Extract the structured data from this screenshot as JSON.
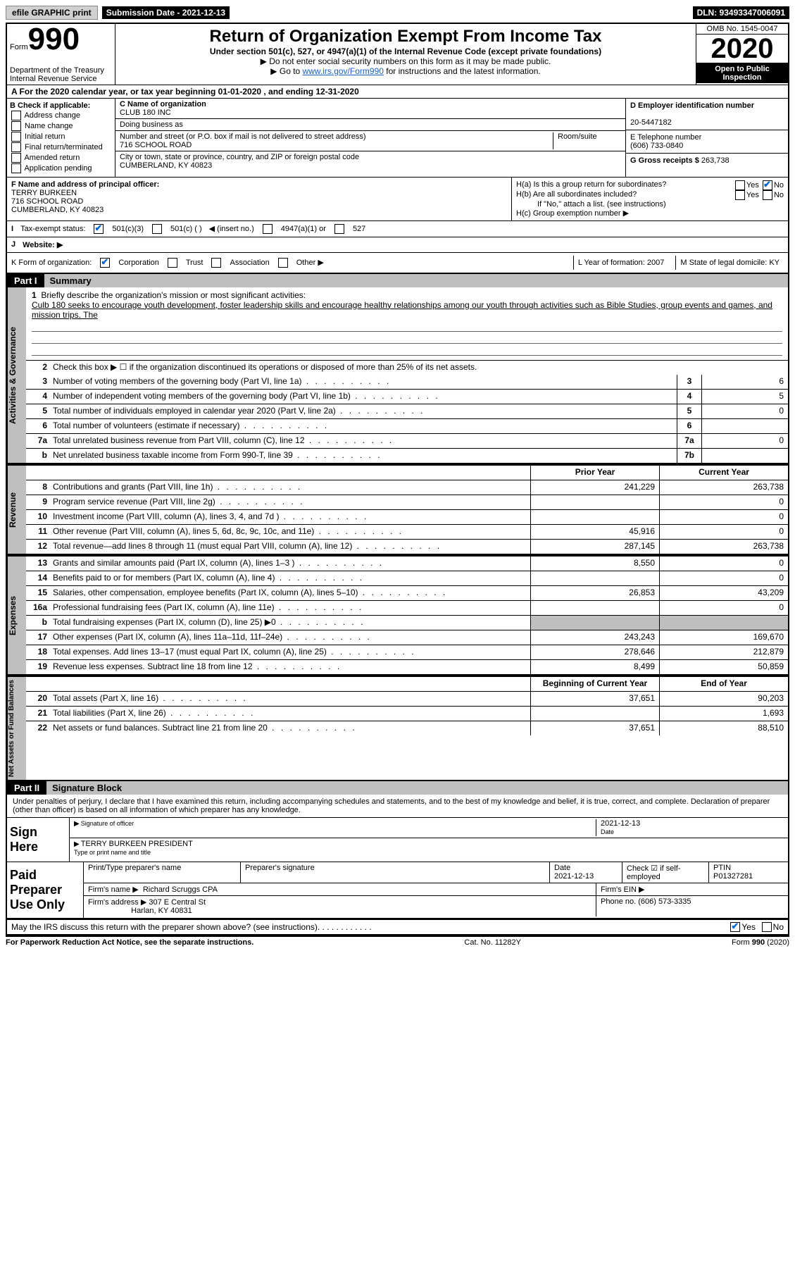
{
  "topbar": {
    "efile": "efile GRAPHIC print",
    "submission_label": "Submission Date - 2021-12-13",
    "dln": "DLN: 93493347006091"
  },
  "header": {
    "form_word": "Form",
    "form_num": "990",
    "dept": "Department of the Treasury\nInternal Revenue Service",
    "title": "Return of Organization Exempt From Income Tax",
    "sub": "Under section 501(c), 527, or 4947(a)(1) of the Internal Revenue Code (except private foundations)",
    "note1": "▶ Do not enter social security numbers on this form as it may be made public.",
    "note2_pre": "▶ Go to ",
    "note2_link": "www.irs.gov/Form990",
    "note2_post": " for instructions and the latest information.",
    "omb": "OMB No. 1545-0047",
    "year": "2020",
    "inspect": "Open to Public Inspection"
  },
  "periodA": "A For the 2020 calendar year, or tax year beginning 01-01-2020   , and ending 12-31-2020",
  "boxB": {
    "title": "B Check if applicable:",
    "items": [
      "Address change",
      "Name change",
      "Initial return",
      "Final return/terminated",
      "Amended return",
      "Application pending"
    ]
  },
  "boxC": {
    "name_label": "C Name of organization",
    "name": "CLUB 180 INC",
    "dba": "Doing business as",
    "street_label": "Number and street (or P.O. box if mail is not delivered to street address)",
    "street": "716 SCHOOL ROAD",
    "room_label": "Room/suite",
    "city_label": "City or town, state or province, country, and ZIP or foreign postal code",
    "city": "CUMBERLAND, KY  40823"
  },
  "boxD": {
    "ein_label": "D Employer identification number",
    "ein": "20-5447182",
    "tel_label": "E Telephone number",
    "tel": "(606) 733-0840",
    "gross_label": "G Gross receipts $",
    "gross": "263,738"
  },
  "boxF": {
    "label": "F Name and address of principal officer:",
    "name": "TERRY BURKEEN",
    "street": "716 SCHOOL ROAD",
    "city": "CUMBERLAND, KY  40823"
  },
  "boxH": {
    "a": "H(a)  Is this a group return for subordinates?",
    "b": "H(b)  Are all subordinates included?",
    "note": "If \"No,\" attach a list. (see instructions)",
    "c": "H(c)  Group exemption number ▶",
    "yes": "Yes",
    "no": "No"
  },
  "statusI": {
    "label": "Tax-exempt status:",
    "opt1": "501(c)(3)",
    "opt2": "501(c) ( )",
    "opt2b": "◀ (insert no.)",
    "opt3": "4947(a)(1) or",
    "opt4": "527"
  },
  "websiteJ": "Website: ▶",
  "orgK": {
    "label": "K Form of organization:",
    "corp": "Corporation",
    "trust": "Trust",
    "assoc": "Association",
    "other": "Other ▶"
  },
  "LM": {
    "l": "L Year of formation: 2007",
    "m": "M State of legal domicile: KY"
  },
  "part1": {
    "label": "Part I",
    "title": "Summary"
  },
  "mission": {
    "q": "Briefly describe the organization's mission or most significant activities:",
    "text": "Culb 180 seeks to encourage youth development, foster leadership skills and encourage healthy relationships among our youth through activities such as Bible Studies, group events and games, and mission trips. The"
  },
  "box2": "Check this box ▶ ☐  if the organization discontinued its operations or disposed of more than 25% of its net assets.",
  "governance": {
    "side": "Activities & Governance",
    "rows": [
      {
        "n": "3",
        "t": "Number of voting members of the governing body (Part VI, line 1a)",
        "box": "3",
        "v": "6"
      },
      {
        "n": "4",
        "t": "Number of independent voting members of the governing body (Part VI, line 1b)",
        "box": "4",
        "v": "5"
      },
      {
        "n": "5",
        "t": "Total number of individuals employed in calendar year 2020 (Part V, line 2a)",
        "box": "5",
        "v": "0"
      },
      {
        "n": "6",
        "t": "Total number of volunteers (estimate if necessary)",
        "box": "6",
        "v": ""
      },
      {
        "n": "7a",
        "t": "Total unrelated business revenue from Part VIII, column (C), line 12",
        "box": "7a",
        "v": "0"
      },
      {
        "n": "b",
        "t": "Net unrelated business taxable income from Form 990-T, line 39",
        "box": "7b",
        "v": ""
      }
    ]
  },
  "columns": {
    "prior": "Prior Year",
    "current": "Current Year"
  },
  "revenue": {
    "side": "Revenue",
    "rows": [
      {
        "n": "8",
        "t": "Contributions and grants (Part VIII, line 1h)",
        "py": "241,229",
        "cy": "263,738"
      },
      {
        "n": "9",
        "t": "Program service revenue (Part VIII, line 2g)",
        "py": "",
        "cy": "0"
      },
      {
        "n": "10",
        "t": "Investment income (Part VIII, column (A), lines 3, 4, and 7d )",
        "py": "",
        "cy": "0"
      },
      {
        "n": "11",
        "t": "Other revenue (Part VIII, column (A), lines 5, 6d, 8c, 9c, 10c, and 11e)",
        "py": "45,916",
        "cy": "0"
      },
      {
        "n": "12",
        "t": "Total revenue—add lines 8 through 11 (must equal Part VIII, column (A), line 12)",
        "py": "287,145",
        "cy": "263,738"
      }
    ]
  },
  "expenses": {
    "side": "Expenses",
    "rows": [
      {
        "n": "13",
        "t": "Grants and similar amounts paid (Part IX, column (A), lines 1–3 )",
        "py": "8,550",
        "cy": "0"
      },
      {
        "n": "14",
        "t": "Benefits paid to or for members (Part IX, column (A), line 4)",
        "py": "",
        "cy": "0"
      },
      {
        "n": "15",
        "t": "Salaries, other compensation, employee benefits (Part IX, column (A), lines 5–10)",
        "py": "26,853",
        "cy": "43,209"
      },
      {
        "n": "16a",
        "t": "Professional fundraising fees (Part IX, column (A), line 11e)",
        "py": "",
        "cy": "0"
      },
      {
        "n": "b",
        "t": "Total fundraising expenses (Part IX, column (D), line 25) ▶0",
        "py": "GRAY",
        "cy": "GRAY"
      },
      {
        "n": "17",
        "t": "Other expenses (Part IX, column (A), lines 11a–11d, 11f–24e)",
        "py": "243,243",
        "cy": "169,670"
      },
      {
        "n": "18",
        "t": "Total expenses. Add lines 13–17 (must equal Part IX, column (A), line 25)",
        "py": "278,646",
        "cy": "212,879"
      },
      {
        "n": "19",
        "t": "Revenue less expenses. Subtract line 18 from line 12",
        "py": "8,499",
        "cy": "50,859"
      }
    ]
  },
  "netassets": {
    "side": "Net Assets or Fund Balances",
    "header_py": "Beginning of Current Year",
    "header_cy": "End of Year",
    "rows": [
      {
        "n": "20",
        "t": "Total assets (Part X, line 16)",
        "py": "37,651",
        "cy": "90,203"
      },
      {
        "n": "21",
        "t": "Total liabilities (Part X, line 26)",
        "py": "",
        "cy": "1,693"
      },
      {
        "n": "22",
        "t": "Net assets or fund balances. Subtract line 21 from line 20",
        "py": "37,651",
        "cy": "88,510"
      }
    ]
  },
  "part2": {
    "label": "Part II",
    "title": "Signature Block"
  },
  "sig": {
    "declaration": "Under penalties of perjury, I declare that I have examined this return, including accompanying schedules and statements, and to the best of my knowledge and belief, it is true, correct, and complete. Declaration of preparer (other than officer) is based on all information of which preparer has any knowledge.",
    "sign_here": "Sign Here",
    "sig_officer": "Signature of officer",
    "date_label": "Date",
    "date": "2021-12-13",
    "officer": "TERRY BURKEEN  PRESIDENT",
    "type_label": "Type or print name and title"
  },
  "preparer": {
    "label": "Paid Preparer Use Only",
    "name_label": "Print/Type preparer's name",
    "sig_label": "Preparer's signature",
    "date_label": "Date",
    "date": "2021-12-13",
    "check_label": "Check ☑ if self-employed",
    "ptin_label": "PTIN",
    "ptin": "P01327281",
    "firm_name_label": "Firm's name   ▶",
    "firm_name": "Richard Scruggs CPA",
    "firm_ein_label": "Firm's EIN ▶",
    "firm_addr_label": "Firm's address ▶",
    "firm_addr": "307 E Central St",
    "firm_city": "Harlan, KY  40831",
    "phone_label": "Phone no.",
    "phone": "(606) 573-3335"
  },
  "discuss": {
    "q": "May the IRS discuss this return with the preparer shown above? (see instructions)",
    "yes": "Yes",
    "no": "No"
  },
  "footer": {
    "left": "For Paperwork Reduction Act Notice, see the separate instructions.",
    "mid": "Cat. No. 11282Y",
    "right": "Form 990 (2020)"
  }
}
